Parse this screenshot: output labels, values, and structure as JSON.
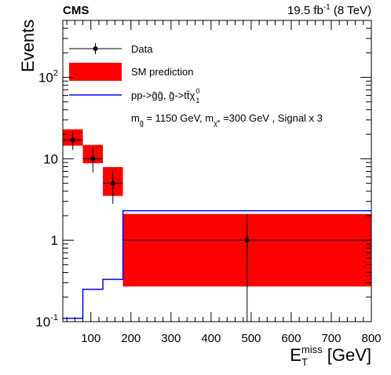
{
  "chart_data": {
    "type": "histogram",
    "header": {
      "experiment": "CMS",
      "lumi_value": "19.5 fb",
      "lumi_exp": "-1",
      "energy": " (8 TeV)"
    },
    "xlabel": {
      "main": "E",
      "sub": "T",
      "sup": "miss",
      "unit": " [GeV]"
    },
    "ylabel": "Events",
    "xlim": [
      30,
      800
    ],
    "ylim": [
      0.1,
      500
    ],
    "y_log": true,
    "x_ticks": [
      100,
      200,
      300,
      400,
      500,
      600,
      700,
      800
    ],
    "y_ticks": [
      {
        "value": 0.1,
        "base": "10",
        "exp": "-1"
      },
      {
        "value": 1,
        "base": "1",
        "exp": ""
      },
      {
        "value": 10,
        "base": "10",
        "exp": ""
      },
      {
        "value": 100,
        "base": "10",
        "exp": "2"
      }
    ],
    "legend": {
      "placement": "top-left",
      "data_label": "Data",
      "sm_label": "SM prediction",
      "signal_label_parts": [
        "pp->",
        "g̃g̃",
        ", ",
        "g̃",
        "->t",
        "t̄",
        "χ",
        "0",
        "1"
      ],
      "signal_note_parts": [
        "m",
        "g̃",
        " = 1150 GeV, m",
        "χ̃°",
        " =300 GeV , Signal x 3"
      ]
    },
    "sm_prediction": [
      {
        "x_low": 30,
        "x_high": 80,
        "y_low": 14.5,
        "y_high": 23
      },
      {
        "x_low": 80,
        "x_high": 130,
        "y_low": 8.8,
        "y_high": 14.8
      },
      {
        "x_low": 130,
        "x_high": 180,
        "y_low": 3.5,
        "y_high": 7.9
      },
      {
        "x_low": 180,
        "x_high": 800,
        "y_low": 0.27,
        "y_high": 2.1
      }
    ],
    "signal": [
      {
        "x_low": 30,
        "x_high": 80,
        "y": 0.11
      },
      {
        "x_low": 80,
        "x_high": 130,
        "y": 0.25
      },
      {
        "x_low": 130,
        "x_high": 180,
        "y": 0.33
      },
      {
        "x_low": 180,
        "x_high": 800,
        "y": 2.3
      }
    ],
    "data": [
      {
        "x": 55,
        "y": 17,
        "err_low": 12.8,
        "err_high": 21.5,
        "x_low": 30,
        "x_high": 80
      },
      {
        "x": 105,
        "y": 10,
        "err_low": 6.8,
        "err_high": 13.8,
        "x_low": 80,
        "x_high": 130
      },
      {
        "x": 155,
        "y": 5,
        "err_low": 2.8,
        "err_high": 7.2,
        "x_low": 130,
        "x_high": 180
      },
      {
        "x": 490,
        "y": 1,
        "err_low": 0.1,
        "err_high": 2.1,
        "x_low": 180,
        "x_high": 800
      }
    ],
    "colors": {
      "sm": "#ff0000",
      "signal": "#0000ff",
      "data": "#000000"
    }
  }
}
